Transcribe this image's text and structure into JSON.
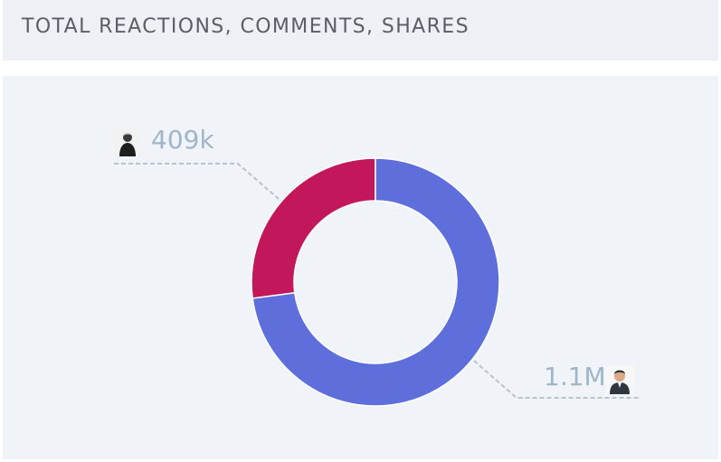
{
  "header": {
    "title": "TOTAL REACTIONS, COMMENTS, SHARES"
  },
  "chart_data": {
    "type": "pie",
    "donut": true,
    "title": "TOTAL REACTIONS, COMMENTS, SHARES",
    "slices": [
      {
        "label": "409k",
        "value": 409000,
        "color": "#c2185b"
      },
      {
        "label": "1.1M",
        "value": 1100000,
        "color": "#5e6fdb"
      }
    ]
  }
}
